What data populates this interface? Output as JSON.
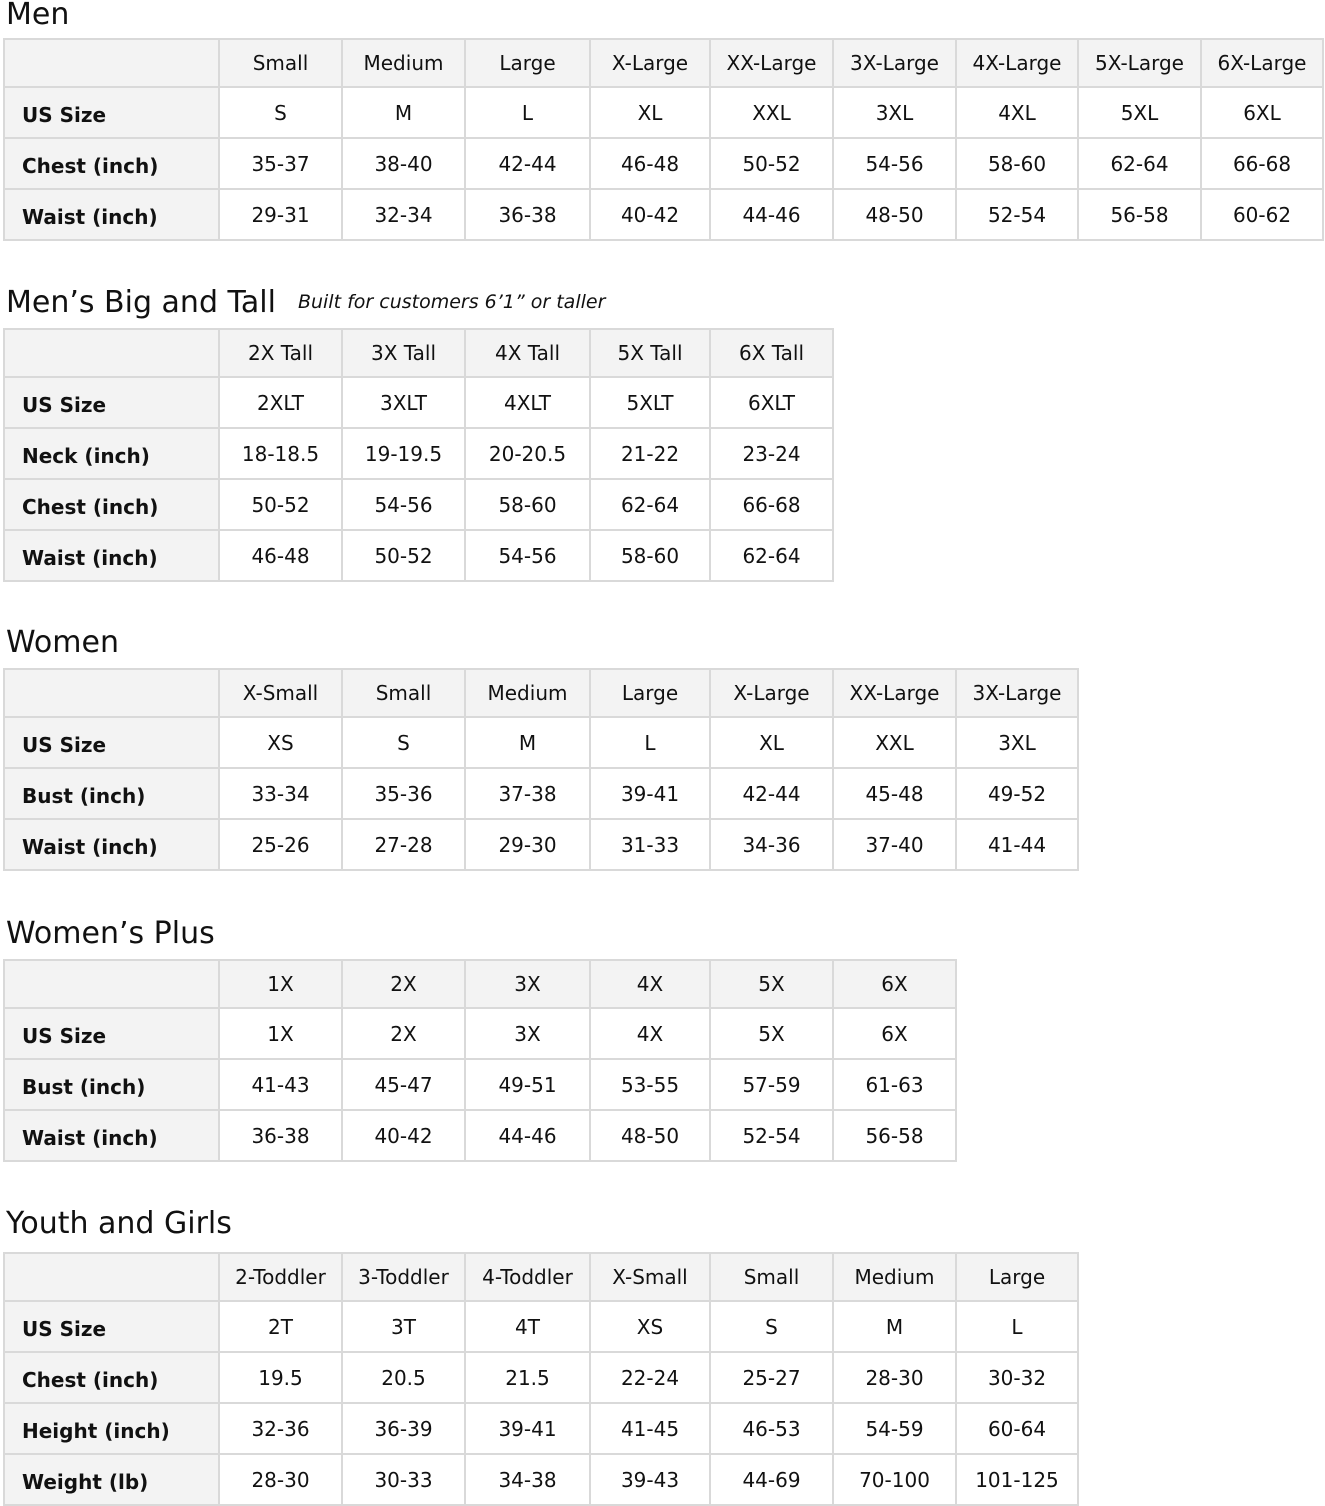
{
  "sections": [
    {
      "title": "Men",
      "subtitle": "",
      "headers": [
        "Small",
        "Medium",
        "Large",
        "X-Large",
        "XX-Large",
        "3X-Large",
        "4X-Large",
        "5X-Large",
        "6X-Large"
      ],
      "rows": [
        {
          "label": "US Size",
          "values": [
            "S",
            "M",
            "L",
            "XL",
            "XXL",
            "3XL",
            "4XL",
            "5XL",
            "6XL"
          ]
        },
        {
          "label": "Chest (inch)",
          "values": [
            "35-37",
            "38-40",
            "42-44",
            "46-48",
            "50-52",
            "54-56",
            "58-60",
            "62-64",
            "66-68"
          ]
        },
        {
          "label": "Waist (inch)",
          "values": [
            "29-31",
            "32-34",
            "36-38",
            "40-42",
            "44-46",
            "48-50",
            "52-54",
            "56-58",
            "60-62"
          ]
        }
      ]
    },
    {
      "title": "Men’s Big and Tall",
      "subtitle": "Built for customers 6’1” or taller",
      "headers": [
        "2X Tall",
        "3X Tall",
        "4X Tall",
        "5X Tall",
        "6X Tall"
      ],
      "rows": [
        {
          "label": "US Size",
          "values": [
            "2XLT",
            "3XLT",
            "4XLT",
            "5XLT",
            "6XLT"
          ]
        },
        {
          "label": "Neck (inch)",
          "values": [
            "18-18.5",
            "19-19.5",
            "20-20.5",
            "21-22",
            "23-24"
          ]
        },
        {
          "label": "Chest (inch)",
          "values": [
            "50-52",
            "54-56",
            "58-60",
            "62-64",
            "66-68"
          ]
        },
        {
          "label": "Waist (inch)",
          "values": [
            "46-48",
            "50-52",
            "54-56",
            "58-60",
            "62-64"
          ]
        }
      ]
    },
    {
      "title": "Women",
      "subtitle": "",
      "headers": [
        "X-Small",
        "Small",
        "Medium",
        "Large",
        "X-Large",
        "XX-Large",
        "3X-Large"
      ],
      "rows": [
        {
          "label": "US Size",
          "values": [
            "XS",
            "S",
            "M",
            "L",
            "XL",
            "XXL",
            "3XL"
          ]
        },
        {
          "label": "Bust (inch)",
          "values": [
            "33-34",
            "35-36",
            "37-38",
            "39-41",
            "42-44",
            "45-48",
            "49-52"
          ]
        },
        {
          "label": "Waist (inch)",
          "values": [
            "25-26",
            "27-28",
            "29-30",
            "31-33",
            "34-36",
            "37-40",
            "41-44"
          ]
        }
      ]
    },
    {
      "title": "Women’s  Plus",
      "subtitle": "",
      "headers": [
        "1X",
        "2X",
        "3X",
        "4X",
        "5X",
        "6X"
      ],
      "rows": [
        {
          "label": "US Size",
          "values": [
            "1X",
            "2X",
            "3X",
            "4X",
            "5X",
            "6X"
          ]
        },
        {
          "label": "Bust (inch)",
          "values": [
            "41-43",
            "45-47",
            "49-51",
            "53-55",
            "57-59",
            "61-63"
          ]
        },
        {
          "label": "Waist (inch)",
          "values": [
            "36-38",
            "40-42",
            "44-46",
            "48-50",
            "52-54",
            "56-58"
          ]
        }
      ]
    },
    {
      "title": "Youth and Girls",
      "subtitle": "",
      "headers": [
        "2-Toddler",
        "3-Toddler",
        "4-Toddler",
        "X-Small",
        "Small",
        "Medium",
        "Large"
      ],
      "rows": [
        {
          "label": "US Size",
          "values": [
            "2T",
            "3T",
            "4T",
            "XS",
            "S",
            "M",
            "L"
          ]
        },
        {
          "label": "Chest (inch)",
          "values": [
            "19.5",
            "20.5",
            "21.5",
            "22-24",
            "25-27",
            "28-30",
            "30-32"
          ]
        },
        {
          "label": "Height (inch)",
          "values": [
            "32-36",
            "36-39",
            "39-41",
            "41-45",
            "46-53",
            "54-59",
            "60-64"
          ]
        },
        {
          "label": "Weight (lb)",
          "values": [
            "28-30",
            "30-33",
            "34-38",
            "39-43",
            "44-69",
            "70-100",
            "101-125"
          ]
        }
      ]
    }
  ]
}
